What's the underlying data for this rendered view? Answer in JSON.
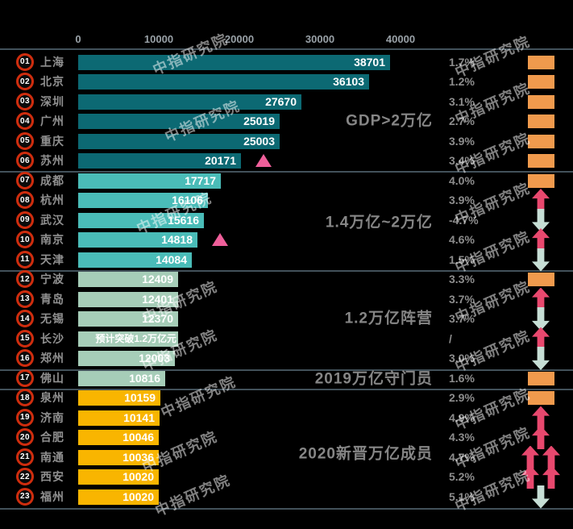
{
  "watermark": {
    "text": "中指研究院"
  },
  "colors": {
    "tier1_bar": "#0c6973",
    "tier2_bar": "#4abcb8",
    "tier3_bar": "#a6cdb8",
    "tier4_bar": "#a6cdb8",
    "tier5_bar": "#f9b500",
    "up_arrow": "#e8486e",
    "down_arrow": "#c6ded5",
    "no_change_rect": "#f09a4d",
    "annotation_triangle": "#ef5f9a",
    "rank_ring": "#cf2d0e"
  },
  "chart_data": {
    "type": "bar",
    "orientation": "horizontal",
    "x_axis": {
      "range": [
        0,
        40000
      ],
      "tick_labels": [
        "0",
        "10000",
        "20000",
        "30000",
        "40000"
      ],
      "tick_values": [
        0,
        10000,
        20000,
        30000,
        40000
      ]
    },
    "legend": null,
    "grid": false,
    "groups": [
      {
        "label": "GDP>2万亿"
      },
      {
        "label": "1.4万亿~2万亿"
      },
      {
        "label": "1.2万亿阵营"
      },
      {
        "label": "2019万亿守门员"
      },
      {
        "label": "2020新晋万亿成员"
      }
    ],
    "rows": [
      {
        "rank": "01",
        "city": "上海",
        "value": 38701,
        "value_label": "38701",
        "growth": "1.7%",
        "trend": "none",
        "group": 1,
        "annotation": null
      },
      {
        "rank": "02",
        "city": "北京",
        "value": 36103,
        "value_label": "36103",
        "growth": "1.2%",
        "trend": "none",
        "group": 1,
        "annotation": null
      },
      {
        "rank": "03",
        "city": "深圳",
        "value": 27670,
        "value_label": "27670",
        "growth": "3.1%",
        "trend": "none",
        "group": 1,
        "annotation": null
      },
      {
        "rank": "04",
        "city": "广州",
        "value": 25019,
        "value_label": "25019",
        "growth": "2.7%",
        "trend": "none",
        "group": 1,
        "annotation": null
      },
      {
        "rank": "05",
        "city": "重庆",
        "value": 25003,
        "value_label": "25003",
        "growth": "3.9%",
        "trend": "none",
        "group": 1,
        "annotation": null
      },
      {
        "rank": "06",
        "city": "苏州",
        "value": 20171,
        "value_label": "20171",
        "growth": "3.4%",
        "trend": "none",
        "group": 1,
        "annotation": "pink-up-triangle"
      },
      {
        "rank": "07",
        "city": "成都",
        "value": 17717,
        "value_label": "17717",
        "growth": "4.0%",
        "trend": "none",
        "group": 2,
        "annotation": null
      },
      {
        "rank": "08",
        "city": "杭州",
        "value": 16106,
        "value_label": "16106",
        "growth": "3.9%",
        "trend": "up",
        "group": 2,
        "annotation": null
      },
      {
        "rank": "09",
        "city": "武汉",
        "value": 15616,
        "value_label": "15616",
        "growth": "-4.7%",
        "trend": "down",
        "group": 2,
        "annotation": null
      },
      {
        "rank": "10",
        "city": "南京",
        "value": 14818,
        "value_label": "14818",
        "growth": "4.6%",
        "trend": "up",
        "group": 2,
        "annotation": "pink-up-triangle"
      },
      {
        "rank": "11",
        "city": "天津",
        "value": 14084,
        "value_label": "14084",
        "growth": "1.5%",
        "trend": "down",
        "group": 2,
        "annotation": null
      },
      {
        "rank": "12",
        "city": "宁波",
        "value": 12409,
        "value_label": "12409",
        "growth": "3.3%",
        "trend": "none",
        "group": 3,
        "annotation": null
      },
      {
        "rank": "13",
        "city": "青岛",
        "value": 12401,
        "value_label": "12401",
        "growth": "3.7%",
        "trend": "up",
        "group": 3,
        "annotation": null
      },
      {
        "rank": "14",
        "city": "无锡",
        "value": 12370,
        "value_label": "12370",
        "growth": "3.7%",
        "trend": "down",
        "group": 3,
        "annotation": null
      },
      {
        "rank": "15",
        "city": "长沙",
        "value": 12400,
        "value_label": "预计突破1.2万亿元",
        "growth": "/",
        "trend": "up",
        "group": 3,
        "annotation": null
      },
      {
        "rank": "16",
        "city": "郑州",
        "value": 12003,
        "value_label": "12003",
        "growth": "3.0%",
        "trend": "down",
        "group": 3,
        "annotation": null
      },
      {
        "rank": "17",
        "city": "佛山",
        "value": 10816,
        "value_label": "10816",
        "growth": "1.6%",
        "trend": "none",
        "group": 4,
        "annotation": null
      },
      {
        "rank": "18",
        "city": "泉州",
        "value": 10159,
        "value_label": "10159",
        "growth": "2.9%",
        "trend": "none",
        "group": 5,
        "annotation": null
      },
      {
        "rank": "19",
        "city": "济南",
        "value": 10141,
        "value_label": "10141",
        "growth": "4.9%",
        "trend": "up",
        "group": 5,
        "annotation": null
      },
      {
        "rank": "20",
        "city": "合肥",
        "value": 10046,
        "value_label": "10046",
        "growth": "4.3%",
        "trend": "up",
        "group": 5,
        "annotation": null
      },
      {
        "rank": "21",
        "city": "南通",
        "value": 10036,
        "value_label": "10036",
        "growth": "4.7%",
        "trend": "up2",
        "group": 5,
        "annotation": null
      },
      {
        "rank": "22",
        "city": "西安",
        "value": 10020,
        "value_label": "10020",
        "growth": "5.2%",
        "trend": "up2",
        "group": 5,
        "annotation": null
      },
      {
        "rank": "23",
        "city": "福州",
        "value": 10020,
        "value_label": "10020",
        "growth": "5.1%",
        "trend": "down",
        "group": 5,
        "annotation": null
      }
    ]
  }
}
